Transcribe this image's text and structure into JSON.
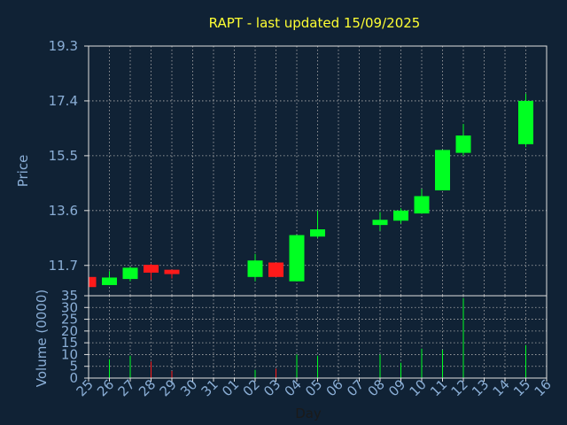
{
  "chart_data": {
    "type": "candlestick",
    "title": "RAPT - last updated 15/09/2025",
    "xlabel": "Day",
    "price_panel": {
      "ylabel": "Price",
      "yticks": [
        "19.3",
        "17.4",
        "15.5",
        "13.6",
        "11.7"
      ],
      "ylim": [
        10.65,
        19.3
      ]
    },
    "volume_panel": {
      "ylabel": "Volume (0000)",
      "yticks": [
        "35",
        "30",
        "25",
        "20",
        "15",
        "10",
        "5",
        "0"
      ],
      "ylim": [
        0,
        35
      ]
    },
    "x_ticks": [
      "25",
      "26",
      "27",
      "28",
      "29",
      "30",
      "31",
      "01",
      "02",
      "03",
      "04",
      "05",
      "06",
      "07",
      "08",
      "09",
      "10",
      "11",
      "12",
      "13",
      "14",
      "15",
      "16"
    ],
    "candles": [
      {
        "day": "25",
        "open": 11.3,
        "close": 10.95,
        "high": 11.3,
        "low": 10.95,
        "volume": 0
      },
      {
        "day": "26",
        "open": 11.02,
        "close": 11.28,
        "high": 11.5,
        "low": 11.02,
        "volume": 8
      },
      {
        "day": "27",
        "open": 11.23,
        "close": 11.62,
        "high": 11.65,
        "low": 11.15,
        "volume": 9.5
      },
      {
        "day": "28",
        "open": 11.72,
        "close": 11.45,
        "high": 11.75,
        "low": 11.2,
        "volume": 7
      },
      {
        "day": "29",
        "open": 11.55,
        "close": 11.4,
        "high": 11.55,
        "low": 11.25,
        "volume": 3
      },
      {
        "day": "02",
        "open": 11.3,
        "close": 11.87,
        "high": 12.1,
        "low": 11.15,
        "volume": 3.5
      },
      {
        "day": "03",
        "open": 11.8,
        "close": 11.3,
        "high": 11.8,
        "low": 11.3,
        "volume": 4
      },
      {
        "day": "04",
        "open": 11.15,
        "close": 12.75,
        "high": 12.75,
        "low": 11.15,
        "volume": 10
      },
      {
        "day": "05",
        "open": 12.7,
        "close": 12.95,
        "high": 13.6,
        "low": 12.65,
        "volume": 9.5
      },
      {
        "day": "08",
        "open": 13.1,
        "close": 13.28,
        "high": 13.55,
        "low": 12.9,
        "volume": 10
      },
      {
        "day": "09",
        "open": 13.25,
        "close": 13.6,
        "high": 13.68,
        "low": 13.15,
        "volume": 6.5
      },
      {
        "day": "10",
        "open": 13.5,
        "close": 14.1,
        "high": 14.35,
        "low": 13.5,
        "volume": 12.5
      },
      {
        "day": "11",
        "open": 14.3,
        "close": 15.7,
        "high": 15.7,
        "low": 14.3,
        "volume": 12
      },
      {
        "day": "12",
        "open": 15.6,
        "close": 16.2,
        "high": 16.6,
        "low": 15.5,
        "volume": 34
      },
      {
        "day": "15",
        "open": 15.9,
        "close": 17.4,
        "high": 17.65,
        "low": 15.8,
        "volume": 14
      }
    ],
    "grid": true,
    "colors": {
      "background": "#102235",
      "up": "#00ff22",
      "down": "#ff1a1a",
      "title": "#ffff33",
      "axis_text": "#8aaed6",
      "grid": "#b0b0b0"
    }
  }
}
